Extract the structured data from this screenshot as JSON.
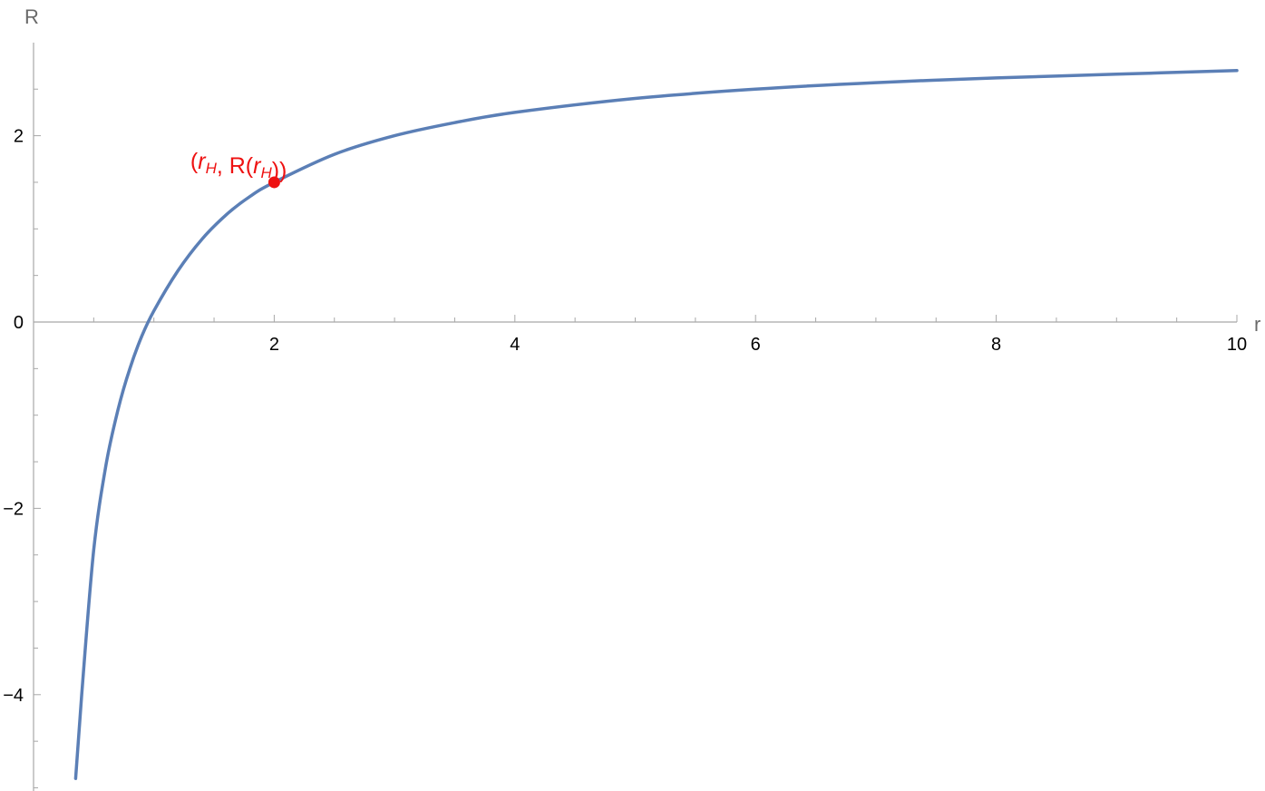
{
  "chart_data": {
    "type": "line",
    "title": "",
    "xlabel": "r",
    "ylabel": "R",
    "xlim": [
      0,
      10
    ],
    "ylim": [
      -5,
      3
    ],
    "x_ticks": [
      2,
      4,
      6,
      8,
      10
    ],
    "x_tick_labels": [
      "2",
      "4",
      "6",
      "8",
      "10"
    ],
    "y_ticks": [
      -4,
      -2,
      0,
      2
    ],
    "y_tick_labels": [
      "−4",
      "−2",
      "0",
      "2"
    ],
    "grid": false,
    "series": [
      {
        "color": "#5b7fb6",
        "x": [
          0.35,
          0.4,
          0.5,
          0.6,
          0.7,
          0.8,
          0.9,
          1.0,
          1.2,
          1.4,
          1.6,
          1.8,
          2.0,
          2.5,
          3.0,
          3.5,
          4.0,
          5.0,
          6.0,
          7.0,
          8.0,
          9.0,
          10.0
        ],
        "y": [
          -4.9,
          -4.0,
          -2.45,
          -1.55,
          -0.95,
          -0.5,
          -0.15,
          0.12,
          0.55,
          0.89,
          1.15,
          1.35,
          1.5,
          1.8,
          2.0,
          2.14,
          2.25,
          2.4,
          2.5,
          2.57,
          2.62,
          2.66,
          2.7
        ]
      }
    ],
    "annotations": [
      {
        "x": 2,
        "y": 1.5,
        "color": "#ee1111",
        "label_parts": [
          {
            "text": "(",
            "italic": false
          },
          {
            "text": "r",
            "italic": true
          },
          {
            "text": "H",
            "italic": true,
            "subscript": true
          },
          {
            "text": ", R(",
            "italic": false
          },
          {
            "text": "r",
            "italic": true
          },
          {
            "text": "H",
            "italic": true,
            "subscript": true
          },
          {
            "text": "))",
            "italic": false
          }
        ]
      }
    ]
  }
}
